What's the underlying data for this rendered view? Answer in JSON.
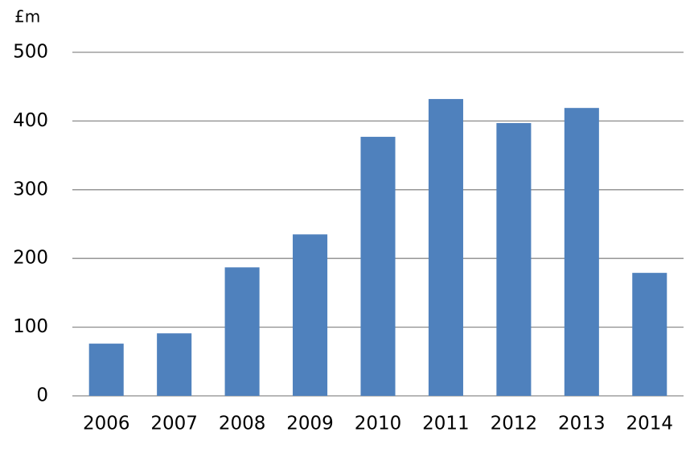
{
  "chart_data": {
    "type": "bar",
    "y_axis_label": "£m",
    "categories": [
      "2006",
      "2007",
      "2008",
      "2009",
      "2010",
      "2011",
      "2012",
      "2013",
      "2014"
    ],
    "values": [
      76,
      91,
      187,
      235,
      377,
      432,
      397,
      419,
      179
    ],
    "color": "#4f81bd",
    "ylim": [
      0,
      500
    ],
    "yticks": [
      0,
      100,
      200,
      300,
      400,
      500
    ],
    "grid": true
  }
}
